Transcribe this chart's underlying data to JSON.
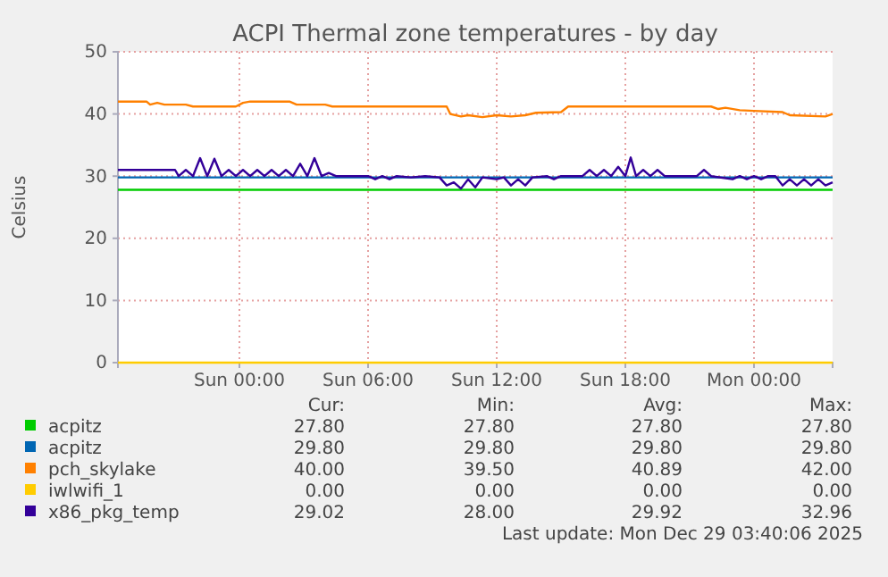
{
  "chart_data": {
    "type": "line",
    "title": "ACPI Thermal zone temperatures - by day",
    "ylabel": "Celsius",
    "xlim": [
      "2025-12-27T18:20",
      "2025-12-29T03:40"
    ],
    "xticks": [
      {
        "value": "2025-12-28T00:00",
        "label": "Sun 00:00"
      },
      {
        "value": "2025-12-28T06:00",
        "label": "Sun 06:00"
      },
      {
        "value": "2025-12-28T12:00",
        "label": "Sun 12:00"
      },
      {
        "value": "2025-12-28T18:00",
        "label": "Sun 18:00"
      },
      {
        "value": "2025-12-29T00:00",
        "label": "Mon 00:00"
      }
    ],
    "ylim": [
      0,
      50
    ],
    "yticks": [
      0,
      10,
      20,
      30,
      40,
      50
    ],
    "grid": true,
    "legend": "bottom",
    "series": [
      {
        "name": "acpitz",
        "color": "#00cc00",
        "x": [
          "2025-12-27T18:20",
          "2025-12-29T03:40"
        ],
        "values": [
          27.8,
          27.8
        ]
      },
      {
        "name": "acpitz",
        "color": "#0066b3",
        "x": [
          "2025-12-27T18:20",
          "2025-12-29T03:40"
        ],
        "values": [
          29.8,
          29.8
        ]
      },
      {
        "name": "pch_skylake",
        "color": "#ff8000",
        "x": [
          "2025-12-27T18:20",
          "2025-12-27T19:40",
          "2025-12-27T19:50",
          "2025-12-27T20:10",
          "2025-12-27T20:30",
          "2025-12-27T21:30",
          "2025-12-27T21:50",
          "2025-12-27T23:50",
          "2025-12-28T00:10",
          "2025-12-28T00:30",
          "2025-12-28T02:20",
          "2025-12-28T02:40",
          "2025-12-28T04:00",
          "2025-12-28T04:20",
          "2025-12-28T09:40",
          "2025-12-28T09:50",
          "2025-12-28T10:20",
          "2025-12-28T10:40",
          "2025-12-28T11:20",
          "2025-12-28T12:00",
          "2025-12-28T12:40",
          "2025-12-28T13:20",
          "2025-12-28T13:50",
          "2025-12-28T15:00",
          "2025-12-28T15:20",
          "2025-12-28T22:00",
          "2025-12-28T22:20",
          "2025-12-28T22:40",
          "2025-12-28T23:20",
          "2025-12-29T00:00",
          "2025-12-29T01:20",
          "2025-12-29T01:40",
          "2025-12-29T03:20",
          "2025-12-29T03:40"
        ],
        "values": [
          42,
          42,
          41.5,
          41.8,
          41.5,
          41.5,
          41.2,
          41.2,
          41.8,
          42,
          42,
          41.5,
          41.5,
          41.2,
          41.2,
          40,
          39.6,
          39.8,
          39.5,
          39.8,
          39.6,
          39.8,
          40.2,
          40.3,
          41.2,
          41.2,
          40.8,
          41,
          40.6,
          40.5,
          40.3,
          39.8,
          39.6,
          40
        ]
      },
      {
        "name": "iwlwifi_1",
        "color": "#ffcc00",
        "x": [
          "2025-12-27T18:20",
          "2025-12-29T03:40"
        ],
        "values": [
          0,
          0
        ]
      },
      {
        "name": "x86_pkg_temp",
        "color": "#330099",
        "x": [
          "2025-12-27T18:20",
          "2025-12-27T21:00",
          "2025-12-27T21:10",
          "2025-12-27T21:30",
          "2025-12-27T21:50",
          "2025-12-27T22:10",
          "2025-12-27T22:30",
          "2025-12-27T22:50",
          "2025-12-27T23:10",
          "2025-12-27T23:30",
          "2025-12-27T23:50",
          "2025-12-28T00:10",
          "2025-12-28T00:30",
          "2025-12-28T00:50",
          "2025-12-28T01:10",
          "2025-12-28T01:30",
          "2025-12-28T01:50",
          "2025-12-28T02:10",
          "2025-12-28T02:30",
          "2025-12-28T02:50",
          "2025-12-28T03:10",
          "2025-12-28T03:30",
          "2025-12-28T03:50",
          "2025-12-28T04:10",
          "2025-12-28T04:30",
          "2025-12-28T06:00",
          "2025-12-28T06:20",
          "2025-12-28T06:40",
          "2025-12-28T07:00",
          "2025-12-28T07:20",
          "2025-12-28T08:00",
          "2025-12-28T08:40",
          "2025-12-28T09:20",
          "2025-12-28T09:40",
          "2025-12-28T10:00",
          "2025-12-28T10:20",
          "2025-12-28T10:40",
          "2025-12-28T11:00",
          "2025-12-28T11:20",
          "2025-12-28T12:00",
          "2025-12-28T12:20",
          "2025-12-28T12:40",
          "2025-12-28T13:00",
          "2025-12-28T13:20",
          "2025-12-28T13:40",
          "2025-12-28T14:20",
          "2025-12-28T14:40",
          "2025-12-28T15:00",
          "2025-12-28T16:00",
          "2025-12-28T16:20",
          "2025-12-28T16:40",
          "2025-12-28T17:00",
          "2025-12-28T17:20",
          "2025-12-28T17:40",
          "2025-12-28T18:00",
          "2025-12-28T18:15",
          "2025-12-28T18:30",
          "2025-12-28T18:50",
          "2025-12-28T19:10",
          "2025-12-28T19:30",
          "2025-12-28T19:50",
          "2025-12-28T21:20",
          "2025-12-28T21:40",
          "2025-12-28T22:00",
          "2025-12-28T23:00",
          "2025-12-28T23:20",
          "2025-12-28T23:40",
          "2025-12-29T00:00",
          "2025-12-29T00:20",
          "2025-12-29T00:40",
          "2025-12-29T01:00",
          "2025-12-29T01:20",
          "2025-12-29T01:40",
          "2025-12-29T02:00",
          "2025-12-29T02:20",
          "2025-12-29T02:40",
          "2025-12-29T03:00",
          "2025-12-29T03:20",
          "2025-12-29T03:40"
        ],
        "values": [
          31,
          31,
          30,
          31,
          30,
          32.9,
          30,
          32.8,
          30,
          31,
          30,
          31,
          30,
          31,
          30,
          31,
          30,
          31,
          30,
          32,
          30,
          32.9,
          30,
          30.5,
          30,
          30,
          29.5,
          30,
          29.5,
          30,
          29.8,
          30,
          29.8,
          28.5,
          29,
          28,
          29.5,
          28.2,
          29.8,
          29.5,
          29.8,
          28.5,
          29.5,
          28.5,
          29.8,
          30,
          29.5,
          30,
          30,
          31,
          30,
          31,
          30,
          31.5,
          30,
          33,
          30,
          31,
          30,
          31,
          30,
          30,
          31,
          30,
          29.5,
          30,
          29.5,
          30,
          29.5,
          30,
          30,
          28.5,
          29.5,
          28.5,
          29.5,
          28.5,
          29.5,
          28.5,
          29
        ]
      }
    ],
    "annotations": [
      "Cur:",
      "Min:",
      "Avg:",
      "Max:",
      "27.80",
      "27.80",
      "27.80",
      "27.80",
      "29.80",
      "29.80",
      "29.80",
      "29.80",
      "40.00",
      "39.50",
      "40.89",
      "42.00",
      "0.00",
      "0.00",
      "0.00",
      "0.00",
      "29.02",
      "28.00",
      "29.92",
      "32.96",
      "Last update: Mon Dec 29 03:40:06 2025"
    ]
  }
}
